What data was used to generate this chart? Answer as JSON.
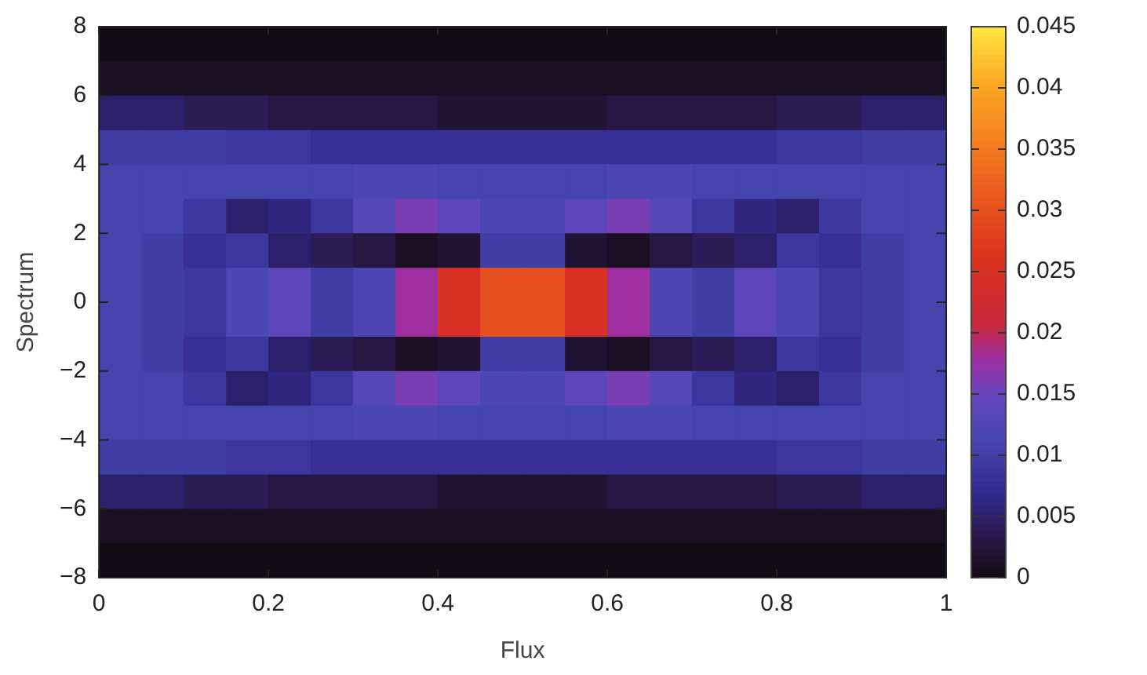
{
  "chart_data": {
    "type": "heatmap",
    "xlabel": "Flux",
    "ylabel": "Spectrum",
    "xlim": [
      0,
      1
    ],
    "xticks": [
      0,
      0.2,
      0.4,
      0.6,
      0.8,
      1
    ],
    "ylim": [
      -8,
      8
    ],
    "yticks": [
      {
        "value": -8,
        "label": "−8"
      },
      {
        "value": -6,
        "label": "−6"
      },
      {
        "value": -4,
        "label": "−4"
      },
      {
        "value": -2,
        "label": "−2"
      },
      0,
      2,
      4,
      6,
      8
    ],
    "clim": [
      0,
      0.045
    ],
    "cticks": [
      0,
      0.005,
      0.01,
      0.015,
      0.02,
      0.025,
      0.03,
      0.035,
      0.04,
      0.045
    ],
    "cells": [
      [
        0,
        0,
        0,
        0,
        0,
        0,
        0,
        0,
        0,
        0,
        0,
        0,
        0,
        0,
        0,
        0,
        0,
        0,
        0,
        0
      ],
      [
        0.001,
        0.001,
        0.001,
        0.001,
        0.001,
        0.001,
        0.001,
        0.001,
        0.001,
        0.001,
        0.001,
        0.001,
        0.001,
        0.001,
        0.001,
        0.001,
        0.001,
        0.001,
        0.001,
        0.001
      ],
      [
        0.005,
        0.005,
        0.004,
        0.004,
        0.003,
        0.003,
        0.003,
        0.003,
        0.002,
        0.002,
        0.002,
        0.002,
        0.003,
        0.003,
        0.003,
        0.003,
        0.004,
        0.004,
        0.005,
        0.005
      ],
      [
        0.01,
        0.01,
        0.01,
        0.009,
        0.009,
        0.008,
        0.008,
        0.008,
        0.008,
        0.008,
        0.008,
        0.008,
        0.008,
        0.008,
        0.008,
        0.008,
        0.009,
        0.009,
        0.01,
        0.01
      ],
      [
        0.011,
        0.011,
        0.011,
        0.011,
        0.011,
        0.011,
        0.012,
        0.012,
        0.011,
        0.011,
        0.011,
        0.011,
        0.012,
        0.012,
        0.011,
        0.011,
        0.011,
        0.011,
        0.011,
        0.011
      ],
      [
        0.011,
        0.011,
        0.009,
        0.005,
        0.006,
        0.009,
        0.013,
        0.016,
        0.014,
        0.012,
        0.012,
        0.014,
        0.016,
        0.013,
        0.009,
        0.006,
        0.005,
        0.009,
        0.011,
        0.011
      ],
      [
        0.011,
        0.01,
        0.008,
        0.009,
        0.005,
        0.004,
        0.003,
        0.001,
        0.002,
        0.01,
        0.01,
        0.002,
        0.001,
        0.003,
        0.004,
        0.005,
        0.009,
        0.008,
        0.01,
        0.011
      ],
      [
        0.011,
        0.01,
        0.009,
        0.012,
        0.014,
        0.01,
        0.012,
        0.018,
        0.025,
        0.03,
        0.03,
        0.025,
        0.018,
        0.012,
        0.01,
        0.014,
        0.012,
        0.009,
        0.01,
        0.011
      ],
      [
        0.011,
        0.01,
        0.009,
        0.012,
        0.014,
        0.01,
        0.012,
        0.018,
        0.025,
        0.03,
        0.03,
        0.025,
        0.018,
        0.012,
        0.01,
        0.014,
        0.012,
        0.009,
        0.01,
        0.011
      ],
      [
        0.011,
        0.01,
        0.008,
        0.009,
        0.005,
        0.004,
        0.003,
        0.001,
        0.002,
        0.01,
        0.01,
        0.002,
        0.001,
        0.003,
        0.004,
        0.005,
        0.009,
        0.008,
        0.01,
        0.011
      ],
      [
        0.011,
        0.011,
        0.009,
        0.005,
        0.006,
        0.009,
        0.013,
        0.016,
        0.014,
        0.012,
        0.012,
        0.014,
        0.016,
        0.013,
        0.009,
        0.006,
        0.005,
        0.009,
        0.011,
        0.011
      ],
      [
        0.011,
        0.011,
        0.011,
        0.011,
        0.011,
        0.011,
        0.012,
        0.012,
        0.011,
        0.011,
        0.011,
        0.011,
        0.012,
        0.012,
        0.011,
        0.011,
        0.011,
        0.011,
        0.011,
        0.011
      ],
      [
        0.01,
        0.01,
        0.01,
        0.009,
        0.009,
        0.008,
        0.008,
        0.008,
        0.008,
        0.008,
        0.008,
        0.008,
        0.008,
        0.008,
        0.008,
        0.008,
        0.009,
        0.009,
        0.01,
        0.01
      ],
      [
        0.005,
        0.005,
        0.004,
        0.004,
        0.003,
        0.003,
        0.003,
        0.003,
        0.002,
        0.002,
        0.002,
        0.002,
        0.003,
        0.003,
        0.003,
        0.003,
        0.004,
        0.004,
        0.005,
        0.005
      ],
      [
        0.001,
        0.001,
        0.001,
        0.001,
        0.001,
        0.001,
        0.001,
        0.001,
        0.001,
        0.001,
        0.001,
        0.001,
        0.001,
        0.001,
        0.001,
        0.001,
        0.001,
        0.001,
        0.001,
        0.001
      ],
      [
        0,
        0,
        0,
        0,
        0,
        0,
        0,
        0,
        0,
        0,
        0,
        0,
        0,
        0,
        0,
        0,
        0,
        0,
        0,
        0
      ]
    ]
  }
}
